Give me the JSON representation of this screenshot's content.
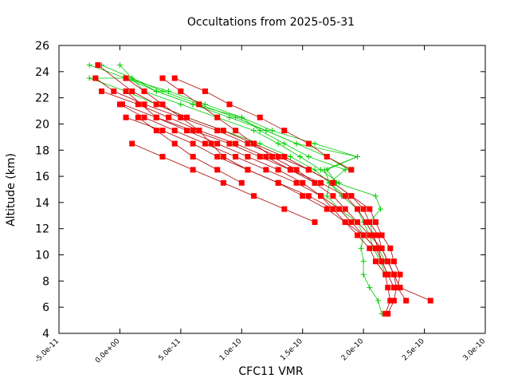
{
  "chart_data": {
    "type": "line",
    "title": "Occultations from 2025-05-31",
    "xlabel": "CFC11 VMR",
    "ylabel": "Altitude (km)",
    "xlim": [
      -5e-11,
      3e-10
    ],
    "ylim": [
      4,
      26
    ],
    "x_ticks": [
      -5e-11,
      0,
      5e-11,
      1e-10,
      1.5e-10,
      2e-10,
      2.5e-10,
      3e-10
    ],
    "x_tick_labels": [
      "-5.0e-11",
      "0.0e+00",
      "5.0e-11",
      "1.0e-10",
      "1.5e-10",
      "2.0e-10",
      "2.5e-10",
      "3.0e-10"
    ],
    "y_ticks": [
      4,
      6,
      8,
      10,
      12,
      14,
      16,
      18,
      20,
      22,
      24,
      26
    ],
    "y_tick_labels": [
      "4",
      "6",
      "8",
      "10",
      "12",
      "14",
      "16",
      "18",
      "20",
      "22",
      "24",
      "26"
    ],
    "grid": false,
    "series": [
      {
        "color": "#00cc00",
        "line_color": "#00cc00",
        "marker": "plus",
        "x": [
          2.15e-10,
          2.12e-10,
          2.05e-10,
          2e-10,
          2e-10,
          1.98e-10,
          2e-10,
          1.95e-10,
          1.8e-10,
          1.7e-10,
          1.72e-10,
          1.85e-10,
          1.55e-10,
          1.35e-10,
          1.15e-10,
          1e-10,
          6e-11,
          3e-11,
          1e-11,
          -1.5e-11
        ],
        "y": [
          5.5,
          6.5,
          7.5,
          8.5,
          9.5,
          10.5,
          11.5,
          12.5,
          13.5,
          14.5,
          15.5,
          16.5,
          17.5,
          18.5,
          19.5,
          20.5,
          21.5,
          22.5,
          23.5,
          24.5
        ]
      },
      {
        "color": "#00cc00",
        "line_color": "#00cc00",
        "marker": "plus",
        "x": [
          2.18e-10,
          2.14e-10,
          2.08e-10,
          2.05e-10,
          2e-10,
          1.95e-10,
          1.82e-10,
          1.72e-10,
          1.68e-10,
          1.95e-10,
          1.6e-10,
          1.25e-10,
          1e-10,
          7e-11,
          4e-11,
          5e-12,
          -2.5e-11
        ],
        "y": [
          8.5,
          9.5,
          10.5,
          11.5,
          12.5,
          13.5,
          14.5,
          15.5,
          16.5,
          17.5,
          18.5,
          19.5,
          20.5,
          21.5,
          22.5,
          23.5,
          24.5
        ]
      },
      {
        "color": "#00cc00",
        "line_color": "#00cc00",
        "marker": "plus",
        "x": [
          2.18e-10,
          2.12e-10,
          2.08e-10,
          2.05e-10,
          2.14e-10,
          2.1e-10,
          1.78e-10,
          1.7e-10,
          1.95e-10,
          1.45e-10,
          1.2e-10,
          9.5e-11,
          6.5e-11,
          3.5e-11,
          1e-11,
          -2e-11
        ],
        "y": [
          9.5,
          10.5,
          11.5,
          12.5,
          13.5,
          14.5,
          15.5,
          16.5,
          17.5,
          18.5,
          19.5,
          20.5,
          21.5,
          22.5,
          23.5,
          23.5
        ]
      },
      {
        "color": "#00cc00",
        "line_color": "#00cc00",
        "marker": "plus",
        "x": [
          1.85e-10,
          1.72e-10,
          1.6e-10,
          1.4e-10,
          1.15e-10,
          8.5e-11,
          5.5e-11,
          3e-11,
          5e-12,
          -2.5e-11
        ],
        "y": [
          14.5,
          15.5,
          16.5,
          17.5,
          18.5,
          19.5,
          20.5,
          21.5,
          22.5,
          23.5
        ]
      },
      {
        "color": "#00cc00",
        "line_color": "#00cc00",
        "marker": "plus",
        "x": [
          1.8e-10,
          1.65e-10,
          1.48e-10,
          1.3e-10,
          1.1e-10,
          8e-11,
          5e-11,
          2e-11,
          0.0
        ],
        "y": [
          15.5,
          16.5,
          17.5,
          18.5,
          19.5,
          20.5,
          21.5,
          22.5,
          24.5
        ]
      },
      {
        "color": "#00cc00",
        "line_color": "#00cc00",
        "marker": "plus",
        "x": [
          1.88e-10,
          1.7e-10,
          1.45e-10,
          1.2e-10,
          9e-11,
          6e-11,
          3e-11,
          5e-12
        ],
        "y": [
          16.5,
          17.5,
          18.5,
          19.5,
          20.5,
          21.5,
          22.5,
          23.5
        ]
      },
      {
        "color": "#ff0000",
        "line_color": "#aa0000",
        "marker": "square",
        "x": [
          2.55e-10,
          2.3e-10,
          2.25e-10,
          2.2e-10,
          2.15e-10,
          2.05e-10,
          1.95e-10,
          1.85e-10,
          1.75e-10,
          1.6e-10,
          1.4e-10,
          1.2e-10,
          9.5e-11,
          6.5e-11,
          4e-11,
          1.5e-11,
          -1.5e-11
        ],
        "y": [
          6.5,
          7.5,
          8.5,
          9.5,
          10.5,
          11.5,
          12.5,
          13.5,
          14.5,
          15.5,
          16.5,
          17.5,
          18.5,
          19.5,
          20.5,
          21.5,
          22.5
        ]
      },
      {
        "color": "#ff0000",
        "line_color": "#aa0000",
        "marker": "square",
        "x": [
          2.35e-10,
          2.28e-10,
          2.3e-10,
          2.25e-10,
          2.22e-10,
          2.15e-10,
          2.1e-10,
          2.05e-10,
          1.9e-10,
          1.75e-10,
          1.55e-10,
          1.3e-10,
          1.05e-10,
          8e-11,
          5e-11,
          2e-11,
          -5e-12,
          -2e-11
        ],
        "y": [
          6.5,
          7.5,
          8.5,
          9.5,
          10.5,
          11.5,
          12.5,
          13.5,
          14.5,
          15.5,
          16.5,
          17.5,
          18.5,
          19.5,
          20.5,
          21.5,
          22.5,
          23.5
        ]
      },
      {
        "color": "#ff0000",
        "line_color": "#aa0000",
        "marker": "square",
        "x": [
          2.2e-10,
          2.25e-10,
          2.27e-10,
          2.25e-10,
          2.2e-10,
          2.15e-10,
          2.12e-10,
          2.05e-10,
          2e-10,
          1.9e-10,
          1.75e-10,
          1.55e-10,
          1.35e-10,
          1.1e-10,
          8.5e-11,
          5.5e-11,
          3e-11,
          1e-11,
          -1.8e-11
        ],
        "y": [
          5.5,
          6.5,
          7.5,
          8.5,
          9.5,
          10.5,
          11.5,
          12.5,
          13.5,
          14.5,
          15.5,
          16.5,
          17.5,
          18.5,
          19.5,
          20.5,
          21.5,
          22.5,
          24.5
        ]
      },
      {
        "color": "#ff0000",
        "line_color": "#aa0000",
        "marker": "square",
        "x": [
          2.18e-10,
          2.22e-10,
          2.2e-10,
          2.18e-10,
          2.1e-10,
          2.05e-10,
          1.95e-10,
          1.85e-10,
          1.7e-10,
          1.5e-10,
          1.3e-10,
          1.05e-10,
          8e-11,
          6e-11,
          3.5e-11,
          5e-12
        ],
        "y": [
          5.5,
          6.5,
          7.5,
          8.5,
          9.5,
          10.5,
          11.5,
          12.5,
          13.5,
          14.5,
          15.5,
          16.5,
          17.5,
          18.5,
          19.5,
          20.5
        ]
      },
      {
        "color": "#ff0000",
        "line_color": "#aa0000",
        "marker": "square",
        "x": [
          2.25e-10,
          2.2e-10,
          2.15e-10,
          2.12e-10,
          2.08e-10,
          2.02e-10,
          1.95e-10,
          1.85e-10,
          1.65e-10,
          1.4e-10,
          1.15e-10,
          9e-11,
          6e-11,
          3e-11,
          5e-12
        ],
        "y": [
          7.5,
          8.5,
          9.5,
          10.5,
          11.5,
          12.5,
          13.5,
          14.5,
          15.5,
          16.5,
          17.5,
          18.5,
          19.5,
          20.5,
          22.5
        ]
      },
      {
        "color": "#ff0000",
        "line_color": "#aa0000",
        "marker": "square",
        "x": [
          2.2e-10,
          2.15e-10,
          2.1e-10,
          2e-10,
          1.85e-10,
          1.75e-10,
          1.65e-10,
          1.5e-10,
          1.3e-10,
          1.05e-10,
          8e-11,
          5.5e-11,
          3e-11,
          2e-12
        ],
        "y": [
          8.5,
          9.5,
          10.5,
          11.5,
          12.5,
          13.5,
          14.5,
          15.5,
          16.5,
          17.5,
          18.5,
          19.5,
          20.5,
          21.5
        ]
      },
      {
        "color": "#ff0000",
        "line_color": "#aa0000",
        "marker": "square",
        "x": [
          2.1e-10,
          2e-10,
          1.9e-10,
          1.8e-10,
          1.65e-10,
          1.45e-10,
          1.2e-10,
          9.5e-11,
          7e-11,
          4.5e-11,
          2e-11,
          0.0
        ],
        "y": [
          10.5,
          11.5,
          12.5,
          13.5,
          14.5,
          15.5,
          16.5,
          17.5,
          18.5,
          19.5,
          20.5,
          21.5
        ]
      },
      {
        "color": "#ff0000",
        "line_color": "#aa0000",
        "marker": "square",
        "x": [
          1.6e-10,
          1.35e-10,
          1.1e-10,
          8.5e-11,
          6e-11,
          3.5e-11,
          1e-11
        ],
        "y": [
          12.5,
          13.5,
          14.5,
          15.5,
          16.5,
          17.5,
          18.5
        ]
      },
      {
        "color": "#ff0000",
        "line_color": "#aa0000",
        "marker": "square",
        "x": [
          1e-10,
          8e-11,
          6e-11,
          4.5e-11,
          3e-11,
          1.5e-11
        ],
        "y": [
          15.5,
          16.5,
          17.5,
          18.5,
          19.5,
          20.5
        ]
      },
      {
        "color": "#ff0000",
        "line_color": "#aa0000",
        "marker": "square",
        "x": [
          1.75e-10,
          1.55e-10,
          1.3e-10,
          1.05e-10,
          8.5e-11,
          7.5e-11,
          6.5e-11,
          5e-11,
          3.5e-11,
          2e-11,
          5e-12
        ],
        "y": [
          13.5,
          14.5,
          15.5,
          16.5,
          17.5,
          18.5,
          19.5,
          20.5,
          21.5,
          22.5,
          23.5
        ]
      },
      {
        "color": "#ff0000",
        "line_color": "#aa0000",
        "marker": "square",
        "x": [
          1.6e-10,
          1.45e-10,
          1.25e-10,
          1.1e-10,
          9.5e-11,
          8e-11,
          6.5e-11,
          5e-11,
          3.5e-11
        ],
        "y": [
          15.5,
          16.5,
          17.5,
          18.5,
          19.5,
          20.5,
          21.5,
          22.5,
          23.5
        ]
      },
      {
        "color": "#ff0000",
        "line_color": "#aa0000",
        "marker": "square",
        "x": [
          1.9e-10,
          1.7e-10,
          1.55e-10,
          1.35e-10,
          1.15e-10,
          9e-11,
          7e-11,
          4.5e-11
        ],
        "y": [
          16.5,
          17.5,
          18.5,
          19.5,
          20.5,
          21.5,
          22.5,
          23.5
        ]
      }
    ]
  }
}
